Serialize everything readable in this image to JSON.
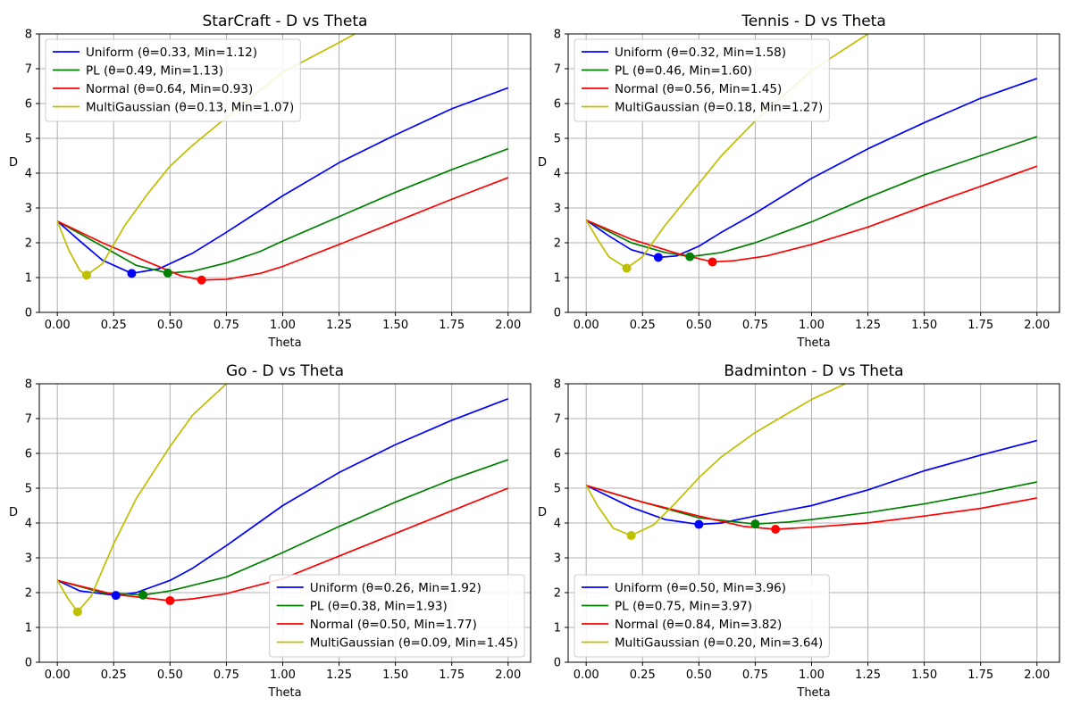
{
  "colors": {
    "Uniform": "#0000ff",
    "PL": "#008000",
    "Normal": "#ff0000",
    "MultiGaussian": "#bfbf00",
    "grid": "#b0b0b0"
  },
  "chart_data": [
    {
      "type": "line",
      "title": "StarCraft - D vs Theta",
      "xlabel": "Theta",
      "ylabel": "D",
      "xlim": [
        -0.08,
        2.1
      ],
      "ylim": [
        0,
        8
      ],
      "xticks": [
        0.0,
        0.25,
        0.5,
        0.75,
        1.0,
        1.25,
        1.5,
        1.75,
        2.0
      ],
      "xtick_labels": [
        "0.00",
        "0.25",
        "0.50",
        "0.75",
        "1.00",
        "1.25",
        "1.50",
        "1.75",
        "2.00"
      ],
      "yticks": [
        0,
        1,
        2,
        3,
        4,
        5,
        6,
        7,
        8
      ],
      "ytick_labels": [
        "0",
        "1",
        "2",
        "3",
        "4",
        "5",
        "6",
        "7",
        "8"
      ],
      "grid": true,
      "legend_position": "upper-left",
      "series": [
        {
          "name": "Uniform (θ=0.33, Min=1.12)",
          "color_key": "Uniform",
          "min_point": [
            0.33,
            1.12
          ],
          "points": [
            [
              0,
              2.62
            ],
            [
              0.1,
              2.05
            ],
            [
              0.2,
              1.5
            ],
            [
              0.33,
              1.12
            ],
            [
              0.45,
              1.25
            ],
            [
              0.6,
              1.7
            ],
            [
              0.75,
              2.3
            ],
            [
              1.0,
              3.35
            ],
            [
              1.25,
              4.3
            ],
            [
              1.5,
              5.1
            ],
            [
              1.75,
              5.85
            ],
            [
              2.0,
              6.45
            ]
          ]
        },
        {
          "name": "PL (θ=0.49, Min=1.13)",
          "color_key": "PL",
          "min_point": [
            0.49,
            1.13
          ],
          "points": [
            [
              0,
              2.62
            ],
            [
              0.2,
              1.9
            ],
            [
              0.35,
              1.35
            ],
            [
              0.49,
              1.13
            ],
            [
              0.6,
              1.18
            ],
            [
              0.75,
              1.42
            ],
            [
              0.9,
              1.75
            ],
            [
              1.0,
              2.05
            ],
            [
              1.25,
              2.75
            ],
            [
              1.5,
              3.45
            ],
            [
              1.75,
              4.1
            ],
            [
              2.0,
              4.7
            ]
          ]
        },
        {
          "name": "Normal (θ=0.64, Min=0.93)",
          "color_key": "Normal",
          "min_point": [
            0.64,
            0.93
          ],
          "points": [
            [
              0,
              2.62
            ],
            [
              0.2,
              2.0
            ],
            [
              0.4,
              1.45
            ],
            [
              0.55,
              1.05
            ],
            [
              0.64,
              0.93
            ],
            [
              0.75,
              0.95
            ],
            [
              0.9,
              1.12
            ],
            [
              1.0,
              1.32
            ],
            [
              1.25,
              1.95
            ],
            [
              1.5,
              2.6
            ],
            [
              1.75,
              3.25
            ],
            [
              2.0,
              3.87
            ]
          ]
        },
        {
          "name": "MultiGaussian (θ=0.13, Min=1.07)",
          "color_key": "MultiGaussian",
          "min_point": [
            0.13,
            1.07
          ],
          "points": [
            [
              0,
              2.62
            ],
            [
              0.05,
              1.8
            ],
            [
              0.1,
              1.2
            ],
            [
              0.13,
              1.07
            ],
            [
              0.2,
              1.4
            ],
            [
              0.3,
              2.5
            ],
            [
              0.4,
              3.4
            ],
            [
              0.5,
              4.2
            ],
            [
              0.6,
              4.8
            ],
            [
              0.75,
              5.6
            ],
            [
              1.0,
              6.9
            ],
            [
              1.25,
              7.75
            ],
            [
              1.32,
              8.0
            ]
          ]
        }
      ]
    },
    {
      "type": "line",
      "title": "Tennis - D vs Theta",
      "xlabel": "Theta",
      "ylabel": "D",
      "xlim": [
        -0.08,
        2.1
      ],
      "ylim": [
        0,
        8
      ],
      "xticks": [
        0.0,
        0.25,
        0.5,
        0.75,
        1.0,
        1.25,
        1.5,
        1.75,
        2.0
      ],
      "xtick_labels": [
        "0.00",
        "0.25",
        "0.50",
        "0.75",
        "1.00",
        "1.25",
        "1.50",
        "1.75",
        "2.00"
      ],
      "yticks": [
        0,
        1,
        2,
        3,
        4,
        5,
        6,
        7,
        8
      ],
      "ytick_labels": [
        "0",
        "1",
        "2",
        "3",
        "4",
        "5",
        "6",
        "7",
        "8"
      ],
      "grid": true,
      "legend_position": "upper-left",
      "series": [
        {
          "name": "Uniform (θ=0.32, Min=1.58)",
          "color_key": "Uniform",
          "min_point": [
            0.32,
            1.58
          ],
          "points": [
            [
              0,
              2.65
            ],
            [
              0.1,
              2.2
            ],
            [
              0.2,
              1.8
            ],
            [
              0.32,
              1.58
            ],
            [
              0.4,
              1.62
            ],
            [
              0.5,
              1.9
            ],
            [
              0.6,
              2.3
            ],
            [
              0.75,
              2.85
            ],
            [
              1.0,
              3.85
            ],
            [
              1.25,
              4.7
            ],
            [
              1.5,
              5.45
            ],
            [
              1.75,
              6.15
            ],
            [
              2.0,
              6.72
            ]
          ]
        },
        {
          "name": "PL (θ=0.46, Min=1.60)",
          "color_key": "PL",
          "min_point": [
            0.46,
            1.6
          ],
          "points": [
            [
              0,
              2.65
            ],
            [
              0.2,
              2.0
            ],
            [
              0.35,
              1.72
            ],
            [
              0.46,
              1.6
            ],
            [
              0.6,
              1.72
            ],
            [
              0.75,
              2.0
            ],
            [
              1.0,
              2.6
            ],
            [
              1.25,
              3.3
            ],
            [
              1.5,
              3.95
            ],
            [
              1.75,
              4.5
            ],
            [
              2.0,
              5.05
            ]
          ]
        },
        {
          "name": "Normal (θ=0.56, Min=1.45)",
          "color_key": "Normal",
          "min_point": [
            0.56,
            1.45
          ],
          "points": [
            [
              0,
              2.65
            ],
            [
              0.2,
              2.1
            ],
            [
              0.4,
              1.7
            ],
            [
              0.56,
              1.45
            ],
            [
              0.65,
              1.48
            ],
            [
              0.8,
              1.62
            ],
            [
              1.0,
              1.95
            ],
            [
              1.25,
              2.45
            ],
            [
              1.5,
              3.05
            ],
            [
              1.75,
              3.62
            ],
            [
              2.0,
              4.2
            ]
          ]
        },
        {
          "name": "MultiGaussian (θ=0.18, Min=1.27)",
          "color_key": "MultiGaussian",
          "min_point": [
            0.18,
            1.27
          ],
          "points": [
            [
              0,
              2.65
            ],
            [
              0.05,
              2.1
            ],
            [
              0.1,
              1.6
            ],
            [
              0.18,
              1.27
            ],
            [
              0.25,
              1.6
            ],
            [
              0.35,
              2.5
            ],
            [
              0.5,
              3.7
            ],
            [
              0.6,
              4.5
            ],
            [
              0.75,
              5.5
            ],
            [
              1.0,
              6.95
            ],
            [
              1.25,
              8.0
            ]
          ]
        }
      ]
    },
    {
      "type": "line",
      "title": "Go - D vs Theta",
      "xlabel": "Theta",
      "ylabel": "D",
      "xlim": [
        -0.08,
        2.1
      ],
      "ylim": [
        0,
        8
      ],
      "xticks": [
        0.0,
        0.25,
        0.5,
        0.75,
        1.0,
        1.25,
        1.5,
        1.75,
        2.0
      ],
      "xtick_labels": [
        "0.00",
        "0.25",
        "0.50",
        "0.75",
        "1.00",
        "1.25",
        "1.50",
        "1.75",
        "2.00"
      ],
      "yticks": [
        0,
        1,
        2,
        3,
        4,
        5,
        6,
        7,
        8
      ],
      "ytick_labels": [
        "0",
        "1",
        "2",
        "3",
        "4",
        "5",
        "6",
        "7",
        "8"
      ],
      "grid": true,
      "legend_position": "lower-right",
      "series": [
        {
          "name": "Uniform (θ=0.26, Min=1.92)",
          "color_key": "Uniform",
          "min_point": [
            0.26,
            1.92
          ],
          "points": [
            [
              0,
              2.35
            ],
            [
              0.1,
              2.05
            ],
            [
              0.26,
              1.92
            ],
            [
              0.35,
              2.0
            ],
            [
              0.5,
              2.35
            ],
            [
              0.6,
              2.7
            ],
            [
              0.75,
              3.35
            ],
            [
              1.0,
              4.5
            ],
            [
              1.25,
              5.45
            ],
            [
              1.5,
              6.25
            ],
            [
              1.75,
              6.95
            ],
            [
              2.0,
              7.57
            ]
          ]
        },
        {
          "name": "PL (θ=0.38, Min=1.93)",
          "color_key": "PL",
          "min_point": [
            0.38,
            1.93
          ],
          "points": [
            [
              0,
              2.35
            ],
            [
              0.2,
              2.0
            ],
            [
              0.38,
              1.93
            ],
            [
              0.5,
              2.05
            ],
            [
              0.75,
              2.45
            ],
            [
              1.0,
              3.15
            ],
            [
              1.25,
              3.9
            ],
            [
              1.5,
              4.6
            ],
            [
              1.75,
              5.25
            ],
            [
              2.0,
              5.82
            ]
          ]
        },
        {
          "name": "Normal (θ=0.50, Min=1.77)",
          "color_key": "Normal",
          "min_point": [
            0.5,
            1.77
          ],
          "points": [
            [
              0,
              2.35
            ],
            [
              0.25,
              1.95
            ],
            [
              0.5,
              1.77
            ],
            [
              0.6,
              1.82
            ],
            [
              0.75,
              1.97
            ],
            [
              1.0,
              2.4
            ],
            [
              1.25,
              3.05
            ],
            [
              1.5,
              3.7
            ],
            [
              1.75,
              4.35
            ],
            [
              2.0,
              5.0
            ]
          ]
        },
        {
          "name": "MultiGaussian (θ=0.09, Min=1.45)",
          "color_key": "MultiGaussian",
          "min_point": [
            0.09,
            1.45
          ],
          "points": [
            [
              0,
              2.35
            ],
            [
              0.05,
              1.8
            ],
            [
              0.09,
              1.45
            ],
            [
              0.15,
              1.9
            ],
            [
              0.25,
              3.4
            ],
            [
              0.35,
              4.7
            ],
            [
              0.5,
              6.2
            ],
            [
              0.6,
              7.1
            ],
            [
              0.75,
              8.0
            ]
          ]
        }
      ]
    },
    {
      "type": "line",
      "title": "Badminton - D vs Theta",
      "xlabel": "Theta",
      "ylabel": "D",
      "xlim": [
        -0.08,
        2.1
      ],
      "ylim": [
        0,
        8
      ],
      "xticks": [
        0.0,
        0.25,
        0.5,
        0.75,
        1.0,
        1.25,
        1.5,
        1.75,
        2.0
      ],
      "xtick_labels": [
        "0.00",
        "0.25",
        "0.50",
        "0.75",
        "1.00",
        "1.25",
        "1.50",
        "1.75",
        "2.00"
      ],
      "yticks": [
        0,
        1,
        2,
        3,
        4,
        5,
        6,
        7,
        8
      ],
      "ytick_labels": [
        "0",
        "1",
        "2",
        "3",
        "4",
        "5",
        "6",
        "7",
        "8"
      ],
      "grid": true,
      "legend_position": "lower-left",
      "series": [
        {
          "name": "Uniform (θ=0.50, Min=3.96)",
          "color_key": "Uniform",
          "min_point": [
            0.5,
            3.96
          ],
          "points": [
            [
              0,
              5.08
            ],
            [
              0.2,
              4.45
            ],
            [
              0.35,
              4.1
            ],
            [
              0.5,
              3.96
            ],
            [
              0.6,
              4.0
            ],
            [
              0.75,
              4.2
            ],
            [
              1.0,
              4.5
            ],
            [
              1.25,
              4.95
            ],
            [
              1.5,
              5.5
            ],
            [
              1.75,
              5.95
            ],
            [
              2.0,
              6.37
            ]
          ]
        },
        {
          "name": "PL (θ=0.75, Min=3.97)",
          "color_key": "PL",
          "min_point": [
            0.75,
            3.97
          ],
          "points": [
            [
              0,
              5.08
            ],
            [
              0.25,
              4.6
            ],
            [
              0.5,
              4.15
            ],
            [
              0.75,
              3.97
            ],
            [
              0.9,
              4.03
            ],
            [
              1.0,
              4.1
            ],
            [
              1.25,
              4.3
            ],
            [
              1.5,
              4.55
            ],
            [
              1.75,
              4.85
            ],
            [
              2.0,
              5.18
            ]
          ]
        },
        {
          "name": "Normal (θ=0.84, Min=3.82)",
          "color_key": "Normal",
          "min_point": [
            0.84,
            3.82
          ],
          "points": [
            [
              0,
              5.08
            ],
            [
              0.25,
              4.6
            ],
            [
              0.5,
              4.2
            ],
            [
              0.7,
              3.9
            ],
            [
              0.84,
              3.82
            ],
            [
              1.0,
              3.88
            ],
            [
              1.25,
              4.0
            ],
            [
              1.5,
              4.2
            ],
            [
              1.75,
              4.42
            ],
            [
              2.0,
              4.72
            ]
          ]
        },
        {
          "name": "MultiGaussian (θ=0.20, Min=3.64)",
          "color_key": "MultiGaussian",
          "min_point": [
            0.2,
            3.64
          ],
          "points": [
            [
              0,
              5.08
            ],
            [
              0.05,
              4.5
            ],
            [
              0.12,
              3.85
            ],
            [
              0.2,
              3.64
            ],
            [
              0.3,
              3.95
            ],
            [
              0.4,
              4.6
            ],
            [
              0.5,
              5.3
            ],
            [
              0.6,
              5.9
            ],
            [
              0.75,
              6.6
            ],
            [
              1.0,
              7.55
            ],
            [
              1.15,
              8.0
            ]
          ]
        }
      ]
    }
  ]
}
